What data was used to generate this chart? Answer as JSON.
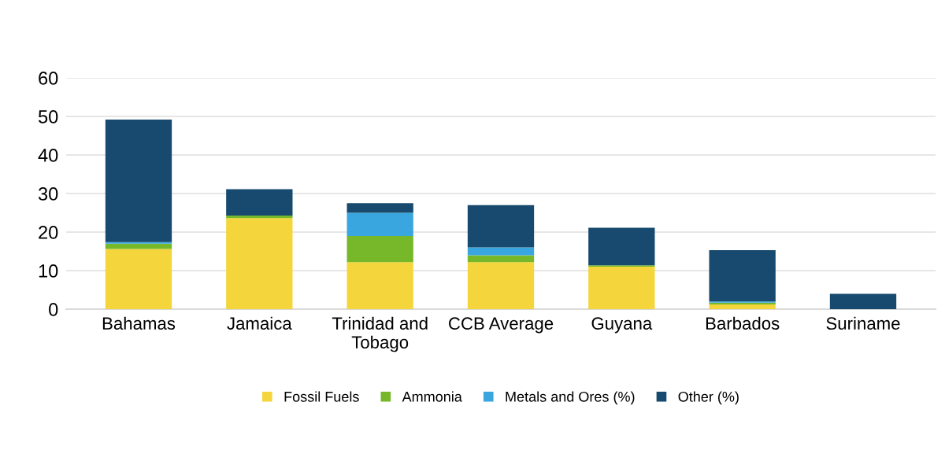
{
  "chart_data": {
    "type": "bar",
    "stacked": true,
    "categories": [
      "Bahamas",
      "Jamaica",
      "Trinidad and Tobago",
      "CCB Average",
      "Guyana",
      "Barbados",
      "Suriname"
    ],
    "series": [
      {
        "name": "Fossil Fuels",
        "color": "#f4d63c",
        "values": [
          15.6,
          23.6,
          12.2,
          12.2,
          11.0,
          1.2,
          0
        ]
      },
      {
        "name": "Ammonia",
        "color": "#76b82a",
        "values": [
          1.4,
          0.7,
          6.8,
          1.8,
          0.4,
          0.5,
          0
        ]
      },
      {
        "name": "Metals and Ores (%)",
        "color": "#3aa6e0",
        "values": [
          0.4,
          0,
          6.0,
          2.0,
          0,
          0.3,
          0
        ]
      },
      {
        "name": "Other (%)",
        "color": "#174a6e",
        "values": [
          31.8,
          6.8,
          2.5,
          11.0,
          9.7,
          13.3,
          4.0
        ]
      }
    ],
    "ylim": [
      0,
      60
    ],
    "yticks": [
      0,
      10,
      20,
      30,
      40,
      50,
      60
    ],
    "grid": "y",
    "legend": "bottom"
  }
}
